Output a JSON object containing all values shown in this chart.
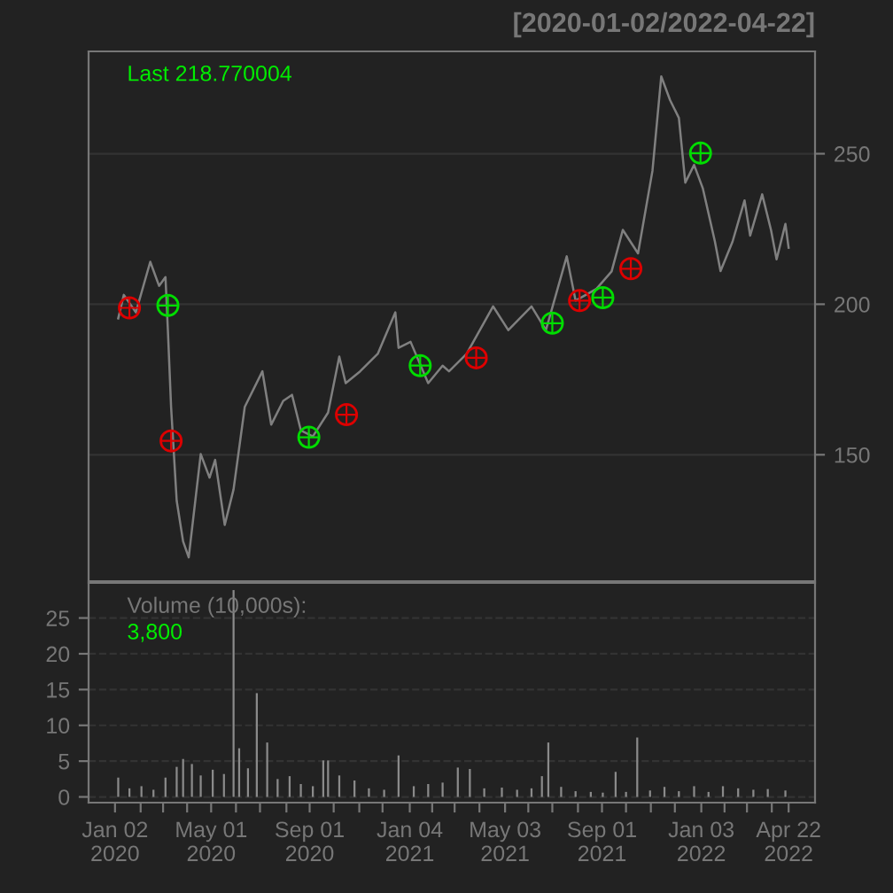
{
  "chart_data": [
    {
      "type": "line",
      "title": "[2020-01-02/2022-04-22]",
      "annotations": [
        "Last 218.770004"
      ],
      "xlim": [
        "2019-11-30",
        "2022-05-25"
      ],
      "ylim": [
        108,
        284
      ],
      "yticks": [
        150,
        200,
        250
      ],
      "tick_labels": "y",
      "grid": "y",
      "legend": false,
      "series": [
        {
          "type": "line",
          "color": "#808080",
          "line_style": "solid",
          "x": [
            "2020-01-06",
            "2020-01-13",
            "2020-01-28",
            "2020-02-15",
            "2020-02-26",
            "2020-03-05",
            "2020-03-08",
            "2020-03-12",
            "2020-03-19",
            "2020-03-27",
            "2020-04-03",
            "2020-04-18",
            "2020-04-29",
            "2020-05-06",
            "2020-05-18",
            "2020-05-29",
            "2020-06-12",
            "2020-07-04",
            "2020-07-15",
            "2020-07-30",
            "2020-08-10",
            "2020-08-21",
            "2020-09-05",
            "2020-09-24",
            "2020-10-08",
            "2020-10-16",
            "2020-11-03",
            "2020-11-25",
            "2020-12-17",
            "2020-12-21",
            "2021-01-05",
            "2021-01-27",
            "2021-02-14",
            "2021-02-22",
            "2021-03-16",
            "2021-04-18",
            "2021-05-07",
            "2021-06-05",
            "2021-06-23",
            "2021-07-19",
            "2021-07-30",
            "2021-08-25",
            "2021-09-13",
            "2021-09-27",
            "2021-10-16",
            "2021-11-03",
            "2021-11-14",
            "2021-11-25",
            "2021-12-06",
            "2021-12-14",
            "2021-12-25",
            "2022-01-05",
            "2022-01-20",
            "2022-01-27",
            "2022-02-11",
            "2022-02-26",
            "2022-03-05",
            "2022-03-20",
            "2022-03-31",
            "2022-04-07",
            "2022-04-18",
            "2022-04-22"
          ],
          "values": [
            195.3,
            203.1,
            197.3,
            214.1,
            206.1,
            209.0,
            191.4,
            165.9,
            134.7,
            121.2,
            115.9,
            150.2,
            142.4,
            148.3,
            126.7,
            138.5,
            165.9,
            177.7,
            160.0,
            167.9,
            169.9,
            158.1,
            156.1,
            164.0,
            182.6,
            173.8,
            177.7,
            183.5,
            197.3,
            185.5,
            187.5,
            173.8,
            179.6,
            177.7,
            183.5,
            199.3,
            191.4,
            199.3,
            191.4,
            215.9,
            201.2,
            205.1,
            210.9,
            224.7,
            216.9,
            244.3,
            275.7,
            267.8,
            261.9,
            240.4,
            246.3,
            238.4,
            220.8,
            211.0,
            220.8,
            234.5,
            222.8,
            236.5,
            224.7,
            214.9,
            226.7,
            218.77
          ]
        },
        {
          "type": "scatter",
          "color": "#00dd00",
          "marker": "circle",
          "x": [
            "2020-03-08",
            "2020-08-31",
            "2021-01-17",
            "2021-07-01",
            "2021-09-02",
            "2022-01-02"
          ],
          "values": [
            199.6,
            155.8,
            179.6,
            193.7,
            202.2,
            250.2
          ]
        },
        {
          "type": "scatter",
          "color": "#dd0000",
          "marker": "circle",
          "x": [
            "2020-01-20",
            "2020-03-12",
            "2020-10-17",
            "2021-03-28",
            "2021-08-04",
            "2021-10-07"
          ],
          "values": [
            198.8,
            154.6,
            163.3,
            182.2,
            201.2,
            211.8
          ]
        }
      ]
    },
    {
      "type": "bar",
      "annotations": [
        "Volume (10,000s):",
        "3,800"
      ],
      "xlim": [
        "2019-11-30",
        "2022-05-25"
      ],
      "ylim": [
        -0.8,
        29.9
      ],
      "yticks": [
        0,
        5,
        10,
        15,
        20,
        25
      ],
      "xticks": [
        {
          "value": "2020-01-02",
          "label": "Jan 02\n2020"
        },
        {
          "value": "2020-02-03",
          "label": null
        },
        {
          "value": "2020-03-02",
          "label": null
        },
        {
          "value": "2020-04-01",
          "label": null
        },
        {
          "value": "2020-05-01",
          "label": "May 01\n2020"
        },
        {
          "value": "2020-06-01",
          "label": null
        },
        {
          "value": "2020-07-01",
          "label": null
        },
        {
          "value": "2020-08-03",
          "label": null
        },
        {
          "value": "2020-09-01",
          "label": "Sep 01\n2020"
        },
        {
          "value": "2020-10-01",
          "label": null
        },
        {
          "value": "2020-11-02",
          "label": null
        },
        {
          "value": "2020-12-01",
          "label": null
        },
        {
          "value": "2021-01-04",
          "label": "Jan 04\n2021"
        },
        {
          "value": "2021-02-01",
          "label": null
        },
        {
          "value": "2021-03-01",
          "label": null
        },
        {
          "value": "2021-04-01",
          "label": null
        },
        {
          "value": "2021-05-03",
          "label": "May 03\n2021"
        },
        {
          "value": "2021-06-01",
          "label": null
        },
        {
          "value": "2021-07-01",
          "label": null
        },
        {
          "value": "2021-08-02",
          "label": null
        },
        {
          "value": "2021-09-01",
          "label": "Sep 01\n2021"
        },
        {
          "value": "2021-10-01",
          "label": null
        },
        {
          "value": "2021-11-01",
          "label": null
        },
        {
          "value": "2021-12-01",
          "label": null
        },
        {
          "value": "2022-01-03",
          "label": "Jan 03\n2022"
        },
        {
          "value": "2022-02-01",
          "label": null
        },
        {
          "value": "2022-03-01",
          "label": null
        },
        {
          "value": "2022-04-01",
          "label": null
        },
        {
          "value": "2022-04-22",
          "label": "Apr 22\n2022"
        }
      ],
      "grid": "y",
      "legend": false,
      "series": [
        {
          "color": "#8a8a8a",
          "x": [
            "2020-01-06",
            "2020-01-20",
            "2020-02-04",
            "2020-02-19",
            "2020-03-05",
            "2020-03-19",
            "2020-03-27",
            "2020-04-07",
            "2020-04-18",
            "2020-05-03",
            "2020-05-17",
            "2020-05-29",
            "2020-06-05",
            "2020-06-16",
            "2020-06-27",
            "2020-07-10",
            "2020-07-23",
            "2020-08-07",
            "2020-08-21",
            "2020-09-05",
            "2020-09-18",
            "2020-09-24",
            "2020-10-08",
            "2020-10-27",
            "2020-11-14",
            "2020-12-03",
            "2020-12-21",
            "2021-01-09",
            "2021-01-27",
            "2021-02-14",
            "2021-03-05",
            "2021-03-20",
            "2021-04-07",
            "2021-04-29",
            "2021-05-18",
            "2021-06-05",
            "2021-06-18",
            "2021-06-26",
            "2021-07-12",
            "2021-07-30",
            "2021-08-18",
            "2021-09-02",
            "2021-09-18",
            "2021-10-01",
            "2021-10-15",
            "2021-10-31",
            "2021-11-18",
            "2021-12-06",
            "2021-12-25",
            "2022-01-12",
            "2022-01-30",
            "2022-02-18",
            "2022-03-09",
            "2022-03-27",
            "2022-04-18"
          ],
          "values": [
            2.7,
            1.2,
            1.5,
            1.0,
            2.7,
            4.2,
            5.3,
            4.6,
            3.0,
            3.8,
            3.2,
            28.9,
            6.8,
            4.0,
            14.5,
            7.6,
            2.5,
            2.9,
            1.8,
            1.5,
            5.1,
            5.1,
            3.0,
            2.3,
            1.2,
            1.0,
            5.8,
            1.5,
            1.8,
            2.0,
            4.1,
            3.9,
            1.2,
            1.3,
            1.0,
            1.2,
            2.9,
            7.6,
            1.4,
            0.8,
            0.7,
            0.6,
            3.5,
            0.7,
            8.3,
            0.9,
            1.4,
            0.8,
            1.5,
            0.7,
            1.5,
            1.2,
            1.0,
            1.1,
            0.9
          ]
        }
      ]
    }
  ]
}
